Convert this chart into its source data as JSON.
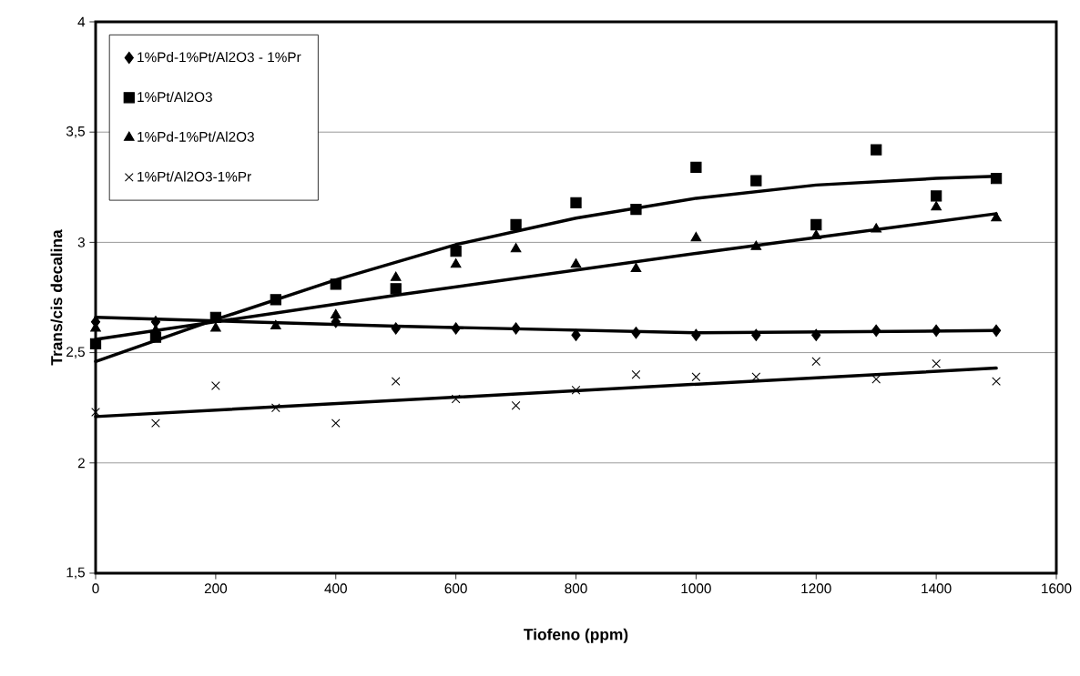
{
  "chart_data": {
    "type": "scatter",
    "xlabel": "Tiofeno (ppm)",
    "ylabel": "Trans/cis decalina",
    "xlim": [
      0,
      1600
    ],
    "xticks": [
      0,
      200,
      400,
      600,
      800,
      1000,
      1200,
      1400,
      1600
    ],
    "ylim": [
      1.5,
      4
    ],
    "yticks": [
      {
        "value": 1.5,
        "label": "1,5"
      },
      2,
      {
        "value": 2.5,
        "label": "2,5"
      },
      3,
      {
        "value": 3.5,
        "label": "3,5"
      },
      4
    ],
    "grid": "y",
    "legend": "top left",
    "x": [
      0,
      100,
      200,
      300,
      400,
      500,
      600,
      700,
      800,
      900,
      1000,
      1100,
      1200,
      1300,
      1400,
      1500
    ],
    "series": [
      {
        "name": "1%Pd-1%Pt/Al2O3 - 1%Pr",
        "color": "#000000",
        "marker": "diamond",
        "values": [
          2.64,
          2.64,
          null,
          null,
          2.64,
          2.61,
          2.61,
          2.61,
          2.58,
          2.59,
          2.58,
          2.58,
          2.58,
          2.6,
          2.6,
          2.6
        ]
      },
      {
        "name": "1%Pt/Al2O3",
        "color": "#000000",
        "marker": "square",
        "values": [
          2.54,
          2.57,
          2.66,
          2.74,
          2.81,
          2.79,
          2.96,
          3.08,
          3.18,
          3.15,
          3.34,
          3.28,
          3.08,
          3.42,
          3.21,
          3.29
        ]
      },
      {
        "name": "1%Pd-1%Pt/Al2O3",
        "color": "#000000",
        "marker": "triangle",
        "values": [
          2.61,
          2.6,
          2.61,
          2.62,
          2.67,
          2.84,
          2.9,
          2.97,
          2.9,
          2.88,
          3.02,
          2.98,
          3.03,
          3.06,
          3.16,
          3.11
        ]
      },
      {
        "name": "1%Pt/Al2O3-1%Pr",
        "color": "#000000",
        "marker": "cross",
        "values": [
          2.23,
          2.18,
          2.35,
          2.25,
          2.18,
          2.37,
          2.29,
          2.26,
          2.33,
          2.4,
          2.39,
          2.39,
          2.46,
          2.38,
          2.45,
          2.37
        ]
      },
      {
        "type": "line",
        "color": "#000000",
        "marker": "none",
        "line_style": "solid",
        "x": [
          0,
          500,
          1000,
          1500
        ],
        "values": [
          2.66,
          2.62,
          2.59,
          2.6
        ]
      },
      {
        "type": "line",
        "color": "#000000",
        "marker": "none",
        "line_style": "solid",
        "x": [
          0,
          200,
          400,
          600,
          800,
          1000,
          1200,
          1400,
          1500
        ],
        "values": [
          2.46,
          2.65,
          2.83,
          2.99,
          3.11,
          3.2,
          3.26,
          3.29,
          3.3
        ]
      },
      {
        "type": "line",
        "color": "#000000",
        "marker": "none",
        "line_style": "solid",
        "x": [
          0,
          500,
          1000,
          1500
        ],
        "values": [
          2.56,
          2.76,
          2.95,
          3.13
        ]
      },
      {
        "type": "line",
        "color": "#000000",
        "marker": "none",
        "line_style": "solid",
        "x": [
          0,
          1500
        ],
        "values": [
          2.21,
          2.43
        ]
      }
    ]
  }
}
